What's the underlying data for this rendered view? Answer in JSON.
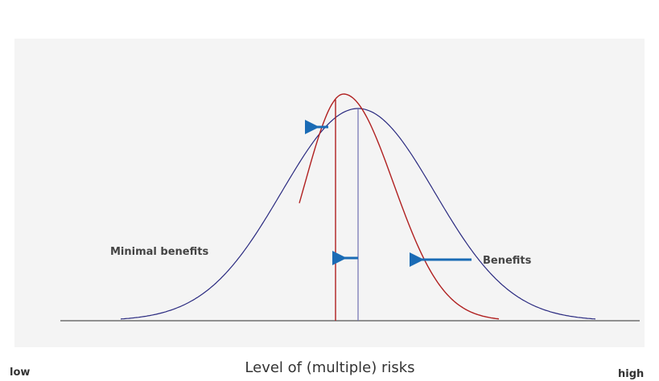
{
  "labels": {
    "left_curve": "Minimal benefits",
    "right_curve": "Benefits"
  },
  "axis": {
    "title": "Level of (multiple) risks",
    "low": "low",
    "high": "high"
  }
}
